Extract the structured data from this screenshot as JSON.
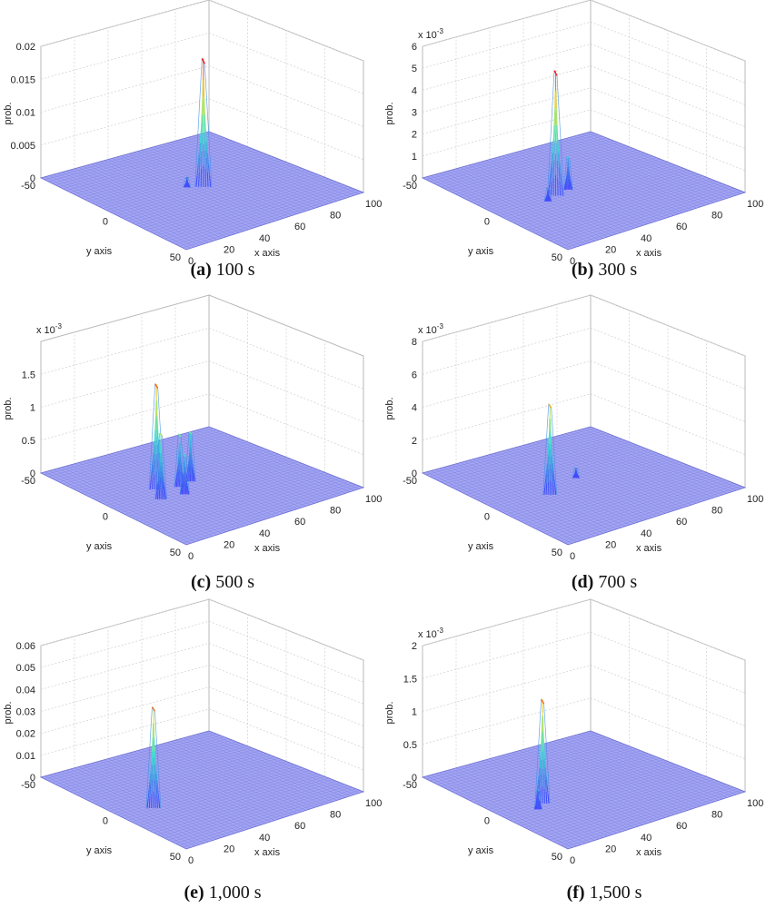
{
  "colors": {
    "floor": "#a3a5f3",
    "floor_grid": "#6c6fd6",
    "box_line": "#b8b8b8",
    "peak_low": "#4040ff",
    "peak_mid": "#40e0d0",
    "peak_high": "#ff2020"
  },
  "chart_data": [
    {
      "type": "surface3d",
      "label": "(a)",
      "time": "100 s",
      "zlabel": "prob.",
      "xlabel": "x axis",
      "ylabel": "y axis",
      "z_exponent": "",
      "zticks": [
        "0",
        "0.005",
        "0.01",
        "0.015",
        "0.02"
      ],
      "zmax": 0.02,
      "xticks": [
        "0",
        "20",
        "40",
        "60",
        "80",
        "100"
      ],
      "yticks": [
        "-50",
        "0",
        "50"
      ],
      "peaks": [
        {
          "x": 52,
          "y": 0,
          "height": 0.0195
        },
        {
          "x": 46,
          "y": -4,
          "height": 0.0015
        }
      ]
    },
    {
      "type": "surface3d",
      "label": "(b)",
      "time": "300 s",
      "zlabel": "prob.",
      "xlabel": "x axis",
      "ylabel": "y axis",
      "z_exponent": "x 10",
      "z_exponent_power": "-3",
      "zticks": [
        "0",
        "1",
        "2",
        "3",
        "4",
        "5",
        "6"
      ],
      "zmax": 6,
      "xticks": [
        "0",
        "20",
        "40",
        "60",
        "80",
        "100"
      ],
      "yticks": [
        "-50",
        "0",
        "50"
      ],
      "peaks": [
        {
          "x": 35,
          "y": 0,
          "height": 5.7
        },
        {
          "x": 44,
          "y": -2,
          "height": 1.5
        },
        {
          "x": 28,
          "y": 3,
          "height": 0.6
        }
      ]
    },
    {
      "type": "surface3d",
      "label": "(c)",
      "time": "500 s",
      "zlabel": "prob.",
      "xlabel": "x axis",
      "ylabel": "y axis",
      "z_exponent": "x 10",
      "z_exponent_power": "-3",
      "zticks": [
        "0",
        "0.5",
        "1",
        "1.5"
      ],
      "zmax": 2,
      "xticks": [
        "0",
        "20",
        "40",
        "60",
        "80",
        "100"
      ],
      "yticks": [
        "-50",
        "0",
        "50"
      ],
      "peaks": [
        {
          "x": 30,
          "y": -6,
          "height": 1.6
        },
        {
          "x": 24,
          "y": 4,
          "height": 1.0
        },
        {
          "x": 40,
          "y": -2,
          "height": 0.8
        },
        {
          "x": 48,
          "y": -4,
          "height": 0.75
        },
        {
          "x": 36,
          "y": 6,
          "height": 0.6
        }
      ]
    },
    {
      "type": "surface3d",
      "label": "(d)",
      "time": "700 s",
      "zlabel": "prob.",
      "xlabel": "x axis",
      "ylabel": "y axis",
      "z_exponent": "x 10",
      "z_exponent_power": "-3",
      "zticks": [
        "0",
        "2",
        "4",
        "6",
        "8"
      ],
      "zmax": 8,
      "xticks": [
        "0",
        "20",
        "40",
        "60",
        "80",
        "100"
      ],
      "yticks": [
        "-50",
        "0",
        "50"
      ],
      "peaks": [
        {
          "x": 30,
          "y": 2,
          "height": 5.5
        },
        {
          "x": 52,
          "y": -6,
          "height": 0.6
        }
      ]
    },
    {
      "type": "surface3d",
      "label": "(e)",
      "time": "1,000 s",
      "zlabel": "prob.",
      "xlabel": "x axis",
      "ylabel": "y axis",
      "z_exponent": "",
      "zticks": [
        "0",
        "0.01",
        "0.02",
        "0.03",
        "0.04",
        "0.05",
        "0.06"
      ],
      "zmax": 0.06,
      "xticks": [
        "0",
        "20",
        "40",
        "60",
        "80",
        "100"
      ],
      "yticks": [
        "-50",
        "0",
        "50"
      ],
      "peaks": [
        {
          "x": 18,
          "y": 6,
          "height": 0.046
        }
      ]
    },
    {
      "type": "surface3d",
      "label": "(f)",
      "time": "1,500 s",
      "zlabel": "prob.",
      "xlabel": "x axis",
      "ylabel": "y axis",
      "z_exponent": "x 10",
      "z_exponent_power": "-3",
      "zticks": [
        "0",
        "0.5",
        "1",
        "1.5",
        "2"
      ],
      "zmax": 2,
      "xticks": [
        "0",
        "20",
        "40",
        "60",
        "80",
        "100"
      ],
      "yticks": [
        "-50",
        "0",
        "50"
      ],
      "peaks": [
        {
          "x": 24,
          "y": 4,
          "height": 1.58
        },
        {
          "x": 18,
          "y": 8,
          "height": 0.3
        }
      ]
    }
  ]
}
